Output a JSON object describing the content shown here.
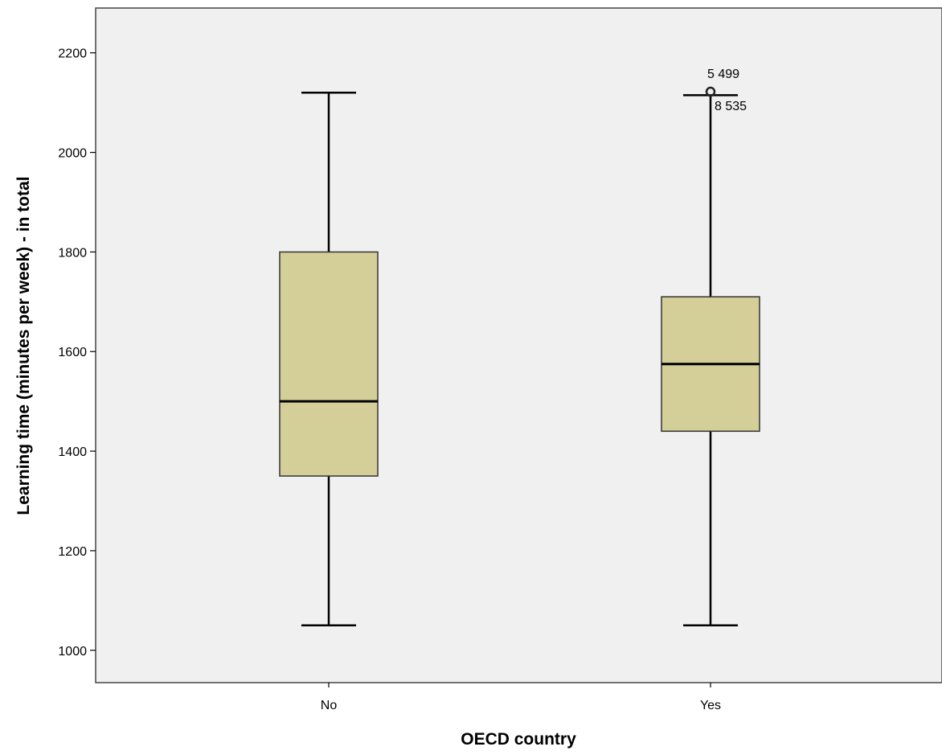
{
  "chart_data": {
    "type": "boxplot",
    "title": "",
    "xlabel": "OECD country",
    "ylabel": "Learning time (minutes per week) - in total",
    "ylim": [
      935,
      2290
    ],
    "yticks": [
      1000,
      1200,
      1400,
      1600,
      1800,
      2000,
      2200
    ],
    "grid": false,
    "legend": "none",
    "colors": {
      "plot_background": "#f0f0f0",
      "box_fill": "#d4ce98",
      "line": "#000000"
    },
    "categories": [
      "No",
      "Yes"
    ],
    "boxes": [
      {
        "category": "No",
        "whisker_low": 1050,
        "q1": 1350,
        "median": 1500,
        "q3": 1800,
        "whisker_high": 2120,
        "outliers": []
      },
      {
        "category": "Yes",
        "whisker_low": 1050,
        "q1": 1440,
        "median": 1575,
        "q3": 1710,
        "whisker_high": 2115,
        "outliers": [
          {
            "value": 2122,
            "labels": [
              "5 499",
              "8 535"
            ]
          }
        ]
      }
    ]
  }
}
